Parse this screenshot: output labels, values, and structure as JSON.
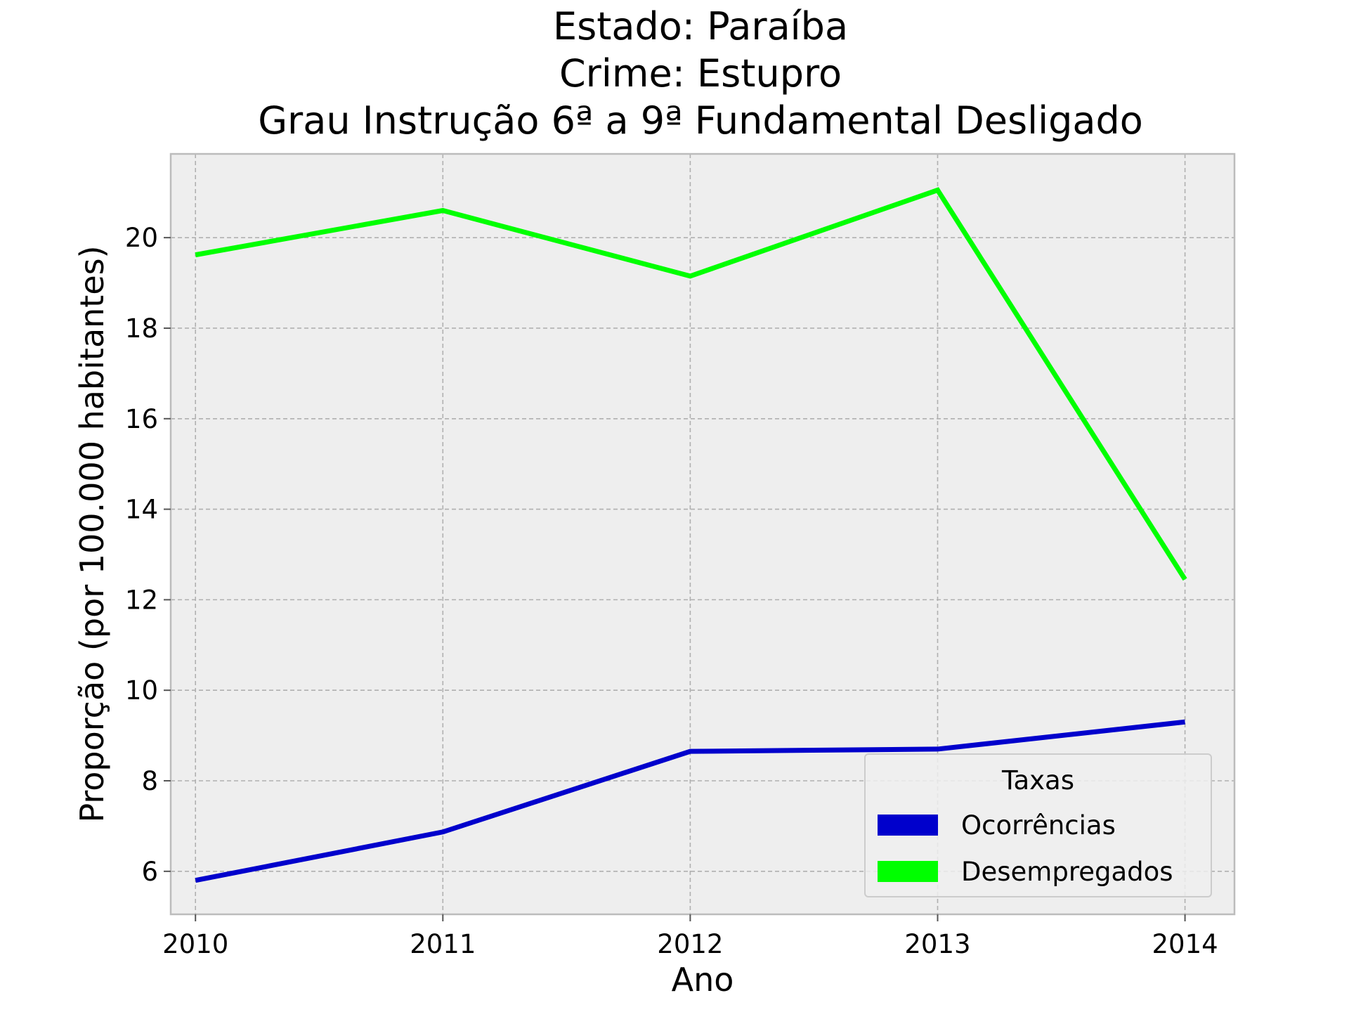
{
  "chart_data": {
    "type": "line",
    "title_lines": [
      "Estado: Paraíba",
      "Crime: Estupro",
      "Grau Instrução  6ª a 9ª Fundamental   Desligado"
    ],
    "xlabel": "Ano",
    "ylabel": "Proporção (por 100.000 habitantes)",
    "x": [
      2010,
      2011,
      2012,
      2013,
      2014
    ],
    "x_tick_labels": [
      "2010",
      "2011",
      "2012",
      "2013",
      "2014"
    ],
    "y_ticks": [
      6,
      8,
      10,
      12,
      14,
      16,
      18,
      20
    ],
    "y_tick_labels": [
      "6",
      "8",
      "10",
      "12",
      "14",
      "16",
      "18",
      "20"
    ],
    "xlim": [
      2009.9,
      2014.2
    ],
    "ylim": [
      5.05,
      21.85
    ],
    "grid": true,
    "legend": {
      "title": "Taxas",
      "placement": "lower-right"
    },
    "series": [
      {
        "name": "Ocorrências",
        "color": "#0000cc",
        "values": [
          5.8,
          6.87,
          8.65,
          8.7,
          9.3
        ]
      },
      {
        "name": "Desempregados",
        "color": "#00ff00",
        "values": [
          19.62,
          20.6,
          19.15,
          21.05,
          12.45
        ]
      }
    ]
  }
}
